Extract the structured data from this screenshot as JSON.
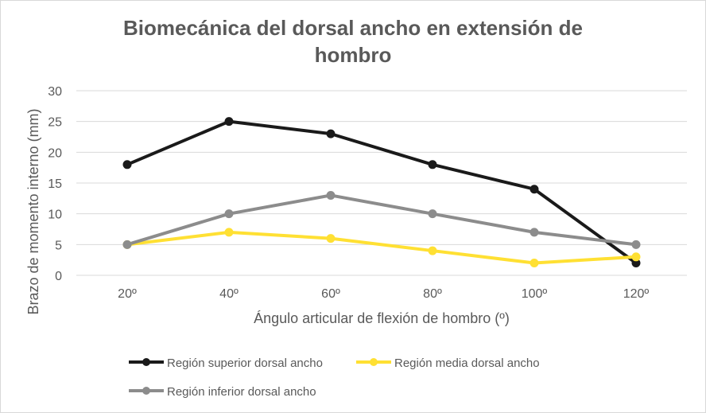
{
  "chart_data": {
    "type": "line",
    "title_lines": [
      "Biomecánica del dorsal ancho en extensión de",
      "hombro"
    ],
    "xlabel": "Ángulo articular de flexión de hombro (º)",
    "ylabel": "Brazo de momento interno (mm)",
    "categories": [
      "20º",
      "40º",
      "60º",
      "80º",
      "100º",
      "120º"
    ],
    "ylim": [
      0,
      30
    ],
    "yticks": [
      "0",
      "5",
      "10",
      "15",
      "20",
      "25",
      "30"
    ],
    "grid": true,
    "legend_position": "bottom",
    "series": [
      {
        "name": "Región superior dorsal ancho",
        "color": "#1a1a1a",
        "values": [
          18,
          25,
          23,
          18,
          14,
          2
        ]
      },
      {
        "name": "Región media dorsal ancho",
        "color": "#ffe033",
        "values": [
          5,
          7,
          6,
          4,
          2,
          3
        ]
      },
      {
        "name": "Región inferior dorsal ancho",
        "color": "#8c8c8c",
        "values": [
          5,
          10,
          13,
          10,
          7,
          5
        ]
      }
    ]
  }
}
